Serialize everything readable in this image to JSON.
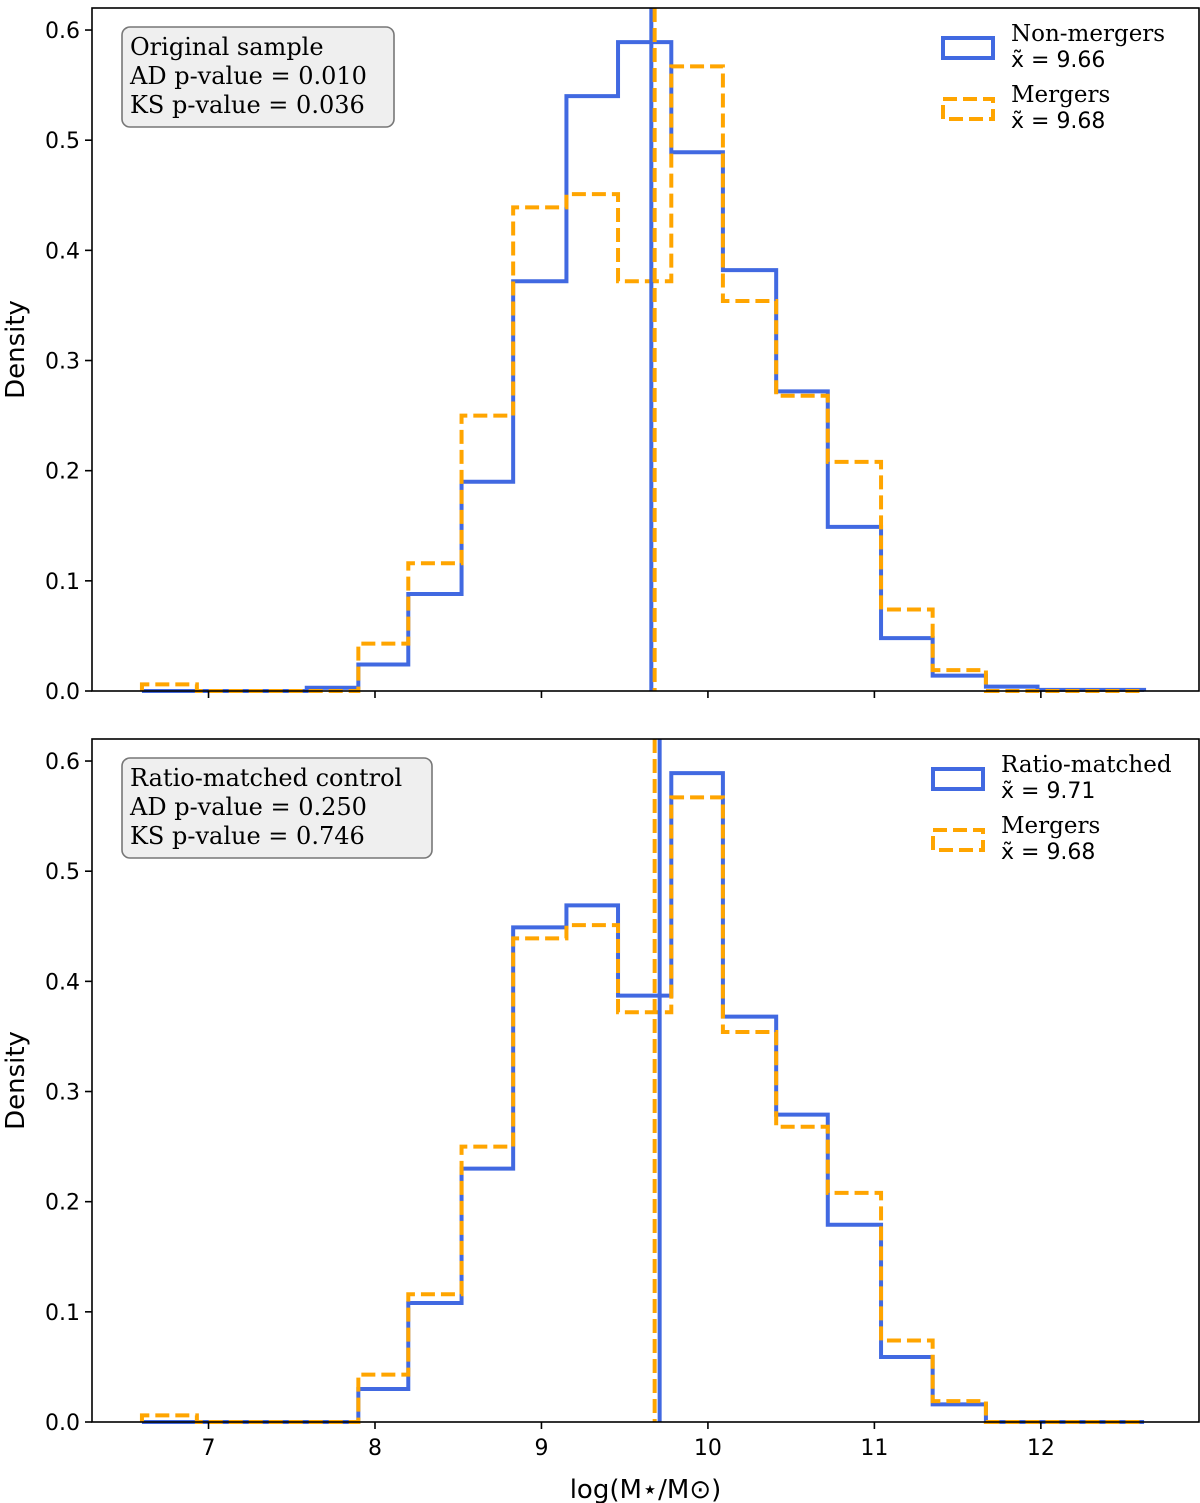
{
  "chart_data": [
    {
      "type": "histogram",
      "ylabel": "Density",
      "xlabel": "",
      "xlim": [
        6.3,
        12.95
      ],
      "ylim": [
        0,
        0.62
      ],
      "xticks": [
        7,
        8,
        9,
        10,
        11,
        12
      ],
      "yticks": [
        0.0,
        0.1,
        0.2,
        0.3,
        0.4,
        0.5,
        0.6
      ],
      "show_xtick_labels": false,
      "bin_edges": [
        6.6,
        6.93,
        7.26,
        7.59,
        7.9,
        8.2,
        8.52,
        8.83,
        9.15,
        9.46,
        9.78,
        10.09,
        10.41,
        10.72,
        11.04,
        11.35,
        11.67,
        11.98,
        12.3,
        12.62
      ],
      "annotation": [
        "Original sample",
        "AD p-value = 0.010",
        "KS p-value = 0.036"
      ],
      "series": [
        {
          "name": "Non-mergers",
          "median_label": "x̃ = 9.66",
          "median": 9.66,
          "color": "#4169e1",
          "style": "solid",
          "values": [
            0.0,
            0.0,
            0.0,
            0.003,
            0.024,
            0.088,
            0.19,
            0.372,
            0.54,
            0.589,
            0.489,
            0.382,
            0.272,
            0.149,
            0.048,
            0.014,
            0.004,
            0.001,
            0.001
          ]
        },
        {
          "name": "Mergers",
          "median_label": "x̃ = 9.68",
          "median": 9.68,
          "color": "#ffa500",
          "style": "dashed",
          "values": [
            0.006,
            0.0,
            0.0,
            0.0,
            0.043,
            0.116,
            0.25,
            0.439,
            0.451,
            0.372,
            0.567,
            0.354,
            0.268,
            0.208,
            0.074,
            0.019,
            0.0,
            0.0,
            0.0
          ]
        }
      ]
    },
    {
      "type": "histogram",
      "ylabel": "Density",
      "xlabel": "log(M⋆/M⊙)",
      "xlim": [
        6.3,
        12.95
      ],
      "ylim": [
        0,
        0.62
      ],
      "xticks": [
        7,
        8,
        9,
        10,
        11,
        12
      ],
      "yticks": [
        0.0,
        0.1,
        0.2,
        0.3,
        0.4,
        0.5,
        0.6
      ],
      "show_xtick_labels": true,
      "bin_edges": [
        6.6,
        6.93,
        7.26,
        7.59,
        7.9,
        8.2,
        8.52,
        8.83,
        9.15,
        9.46,
        9.78,
        10.09,
        10.41,
        10.72,
        11.04,
        11.35,
        11.67,
        11.98,
        12.3,
        12.62
      ],
      "annotation": [
        "Ratio-matched control",
        "AD p-value = 0.250",
        "KS p-value = 0.746"
      ],
      "series": [
        {
          "name": "Ratio-matched",
          "median_label": "x̃ = 9.71",
          "median": 9.71,
          "color": "#4169e1",
          "style": "solid",
          "values": [
            0.0,
            0.0,
            0.0,
            0.0,
            0.03,
            0.108,
            0.23,
            0.449,
            0.469,
            0.387,
            0.589,
            0.368,
            0.279,
            0.179,
            0.059,
            0.016,
            0.0,
            0.0,
            0.0
          ]
        },
        {
          "name": "Mergers",
          "median_label": "x̃ = 9.68",
          "median": 9.68,
          "color": "#ffa500",
          "style": "dashed",
          "values": [
            0.006,
            0.0,
            0.0,
            0.0,
            0.043,
            0.116,
            0.25,
            0.439,
            0.451,
            0.372,
            0.567,
            0.354,
            0.268,
            0.208,
            0.074,
            0.019,
            0.0,
            0.0,
            0.0
          ]
        }
      ]
    }
  ]
}
